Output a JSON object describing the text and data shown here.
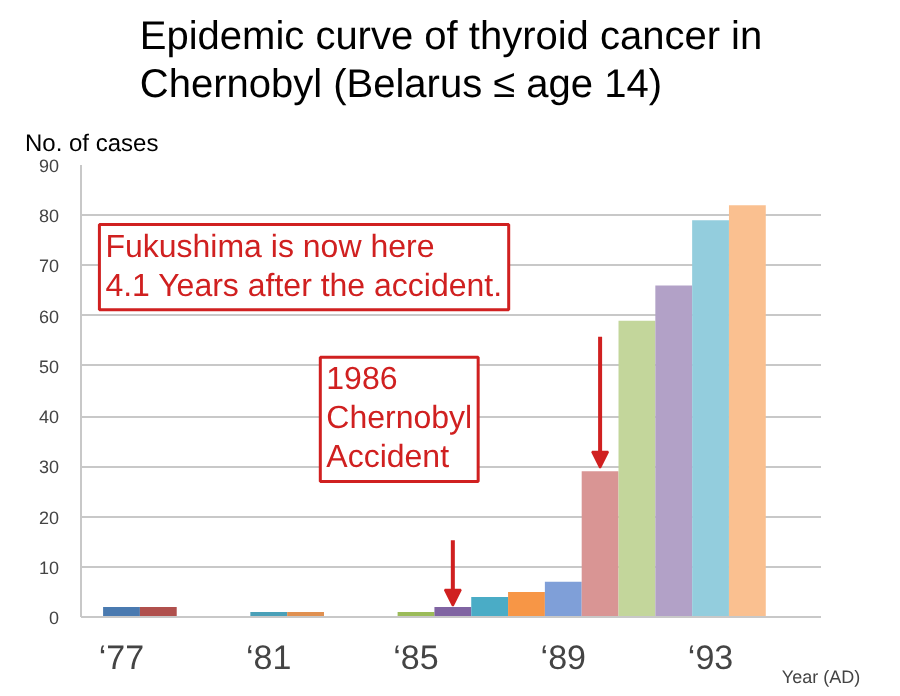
{
  "chart_data": {
    "type": "bar",
    "title": "Epidemic curve of thyroid cancer in Chernobyl (Belarus ≤ age 14)",
    "ylabel": "No. of cases",
    "xlabel": "Year (AD)",
    "categories": [
      "‘77",
      null,
      null,
      null,
      "‘81",
      null,
      null,
      null,
      "‘85",
      null,
      null,
      null,
      "‘89",
      null,
      null,
      null,
      "‘93",
      null
    ],
    "values": [
      2,
      2,
      null,
      null,
      1,
      1,
      null,
      null,
      1,
      2,
      4,
      5,
      7,
      29,
      59,
      66,
      79,
      82
    ],
    "colors": [
      "#4a7ab0",
      "#b0504d",
      "#4a7ab0",
      "#4a7ab0",
      "#4aa0b8",
      "#e09050",
      "#4a7ab0",
      "#4a7ab0",
      "#9bbb59",
      "#8064a2",
      "#4aacc6",
      "#f79646",
      "#7f9fd8",
      "#d99594",
      "#c3d69b",
      "#b2a1c7",
      "#93cddd",
      "#fac090"
    ],
    "ylim": [
      0,
      90
    ],
    "yticks": [
      0,
      10,
      20,
      30,
      40,
      50,
      60,
      70,
      80,
      90
    ],
    "grid": "y",
    "annotations": [
      "Fukushima is now here\n4.1 Years after the accident.",
      "1986\nChernobyl\nAccident"
    ]
  }
}
